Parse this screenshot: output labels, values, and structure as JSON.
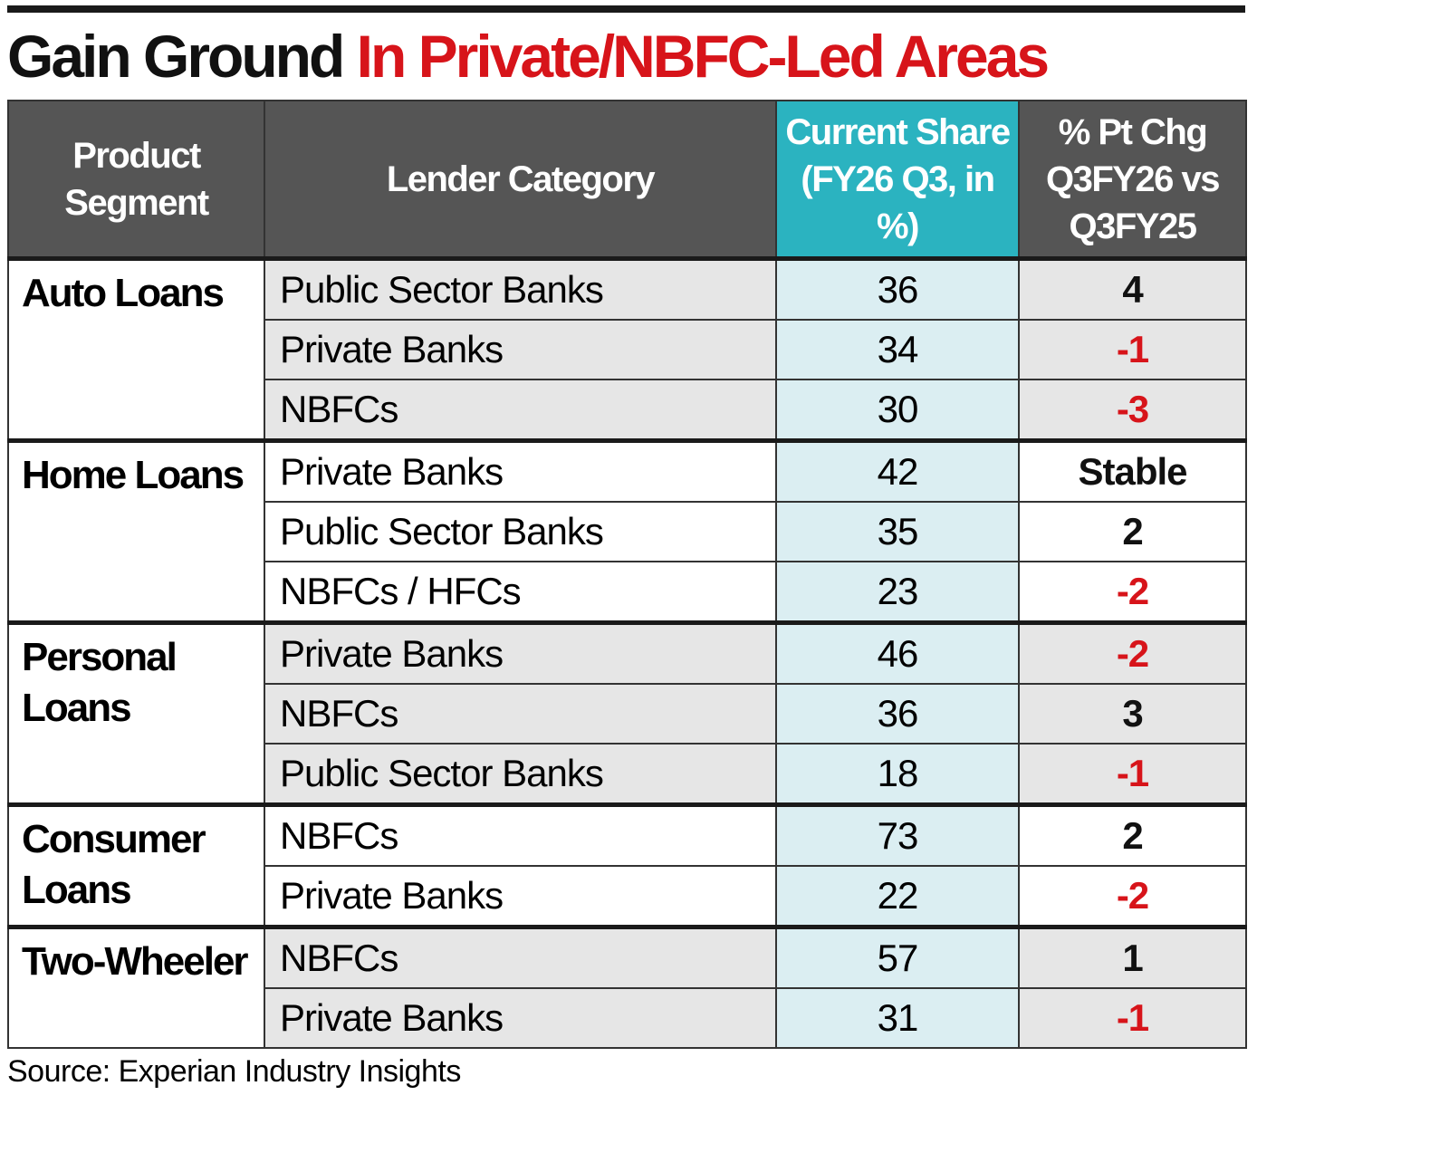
{
  "title": {
    "lead": "Gain Ground",
    "rest": "In Private/NBFC-Led Areas"
  },
  "table": {
    "headers": [
      "Product Segment",
      "Lender Category",
      "Current Share (FY26 Q3, in %)",
      "% Pt Chg Q3FY26 vs Q3FY25"
    ],
    "groups": [
      {
        "segment": "Auto Loans",
        "rows": [
          [
            "Public Sector Banks",
            36,
            4
          ],
          [
            "Private Banks",
            34,
            -1
          ],
          [
            "NBFCs",
            30,
            -3
          ]
        ]
      },
      {
        "segment": "Home Loans",
        "rows": [
          [
            "Private Banks",
            42,
            "Stable"
          ],
          [
            "Public Sector Banks",
            35,
            2
          ],
          [
            "NBFCs / HFCs",
            23,
            -2
          ]
        ]
      },
      {
        "segment": "Personal Loans",
        "rows": [
          [
            "Private Banks",
            46,
            -2
          ],
          [
            "NBFCs",
            36,
            3
          ],
          [
            "Public Sector Banks",
            18,
            -1
          ]
        ]
      },
      {
        "segment": "Consumer Loans",
        "rows": [
          [
            "NBFCs",
            73,
            2
          ],
          [
            "Private Banks",
            22,
            -2
          ]
        ]
      },
      {
        "segment": "Two-Wheeler",
        "rows": [
          [
            "NBFCs",
            57,
            1
          ],
          [
            "Private Banks",
            31,
            -1
          ]
        ]
      }
    ]
  },
  "source": "Source: Experian Industry Insights"
}
